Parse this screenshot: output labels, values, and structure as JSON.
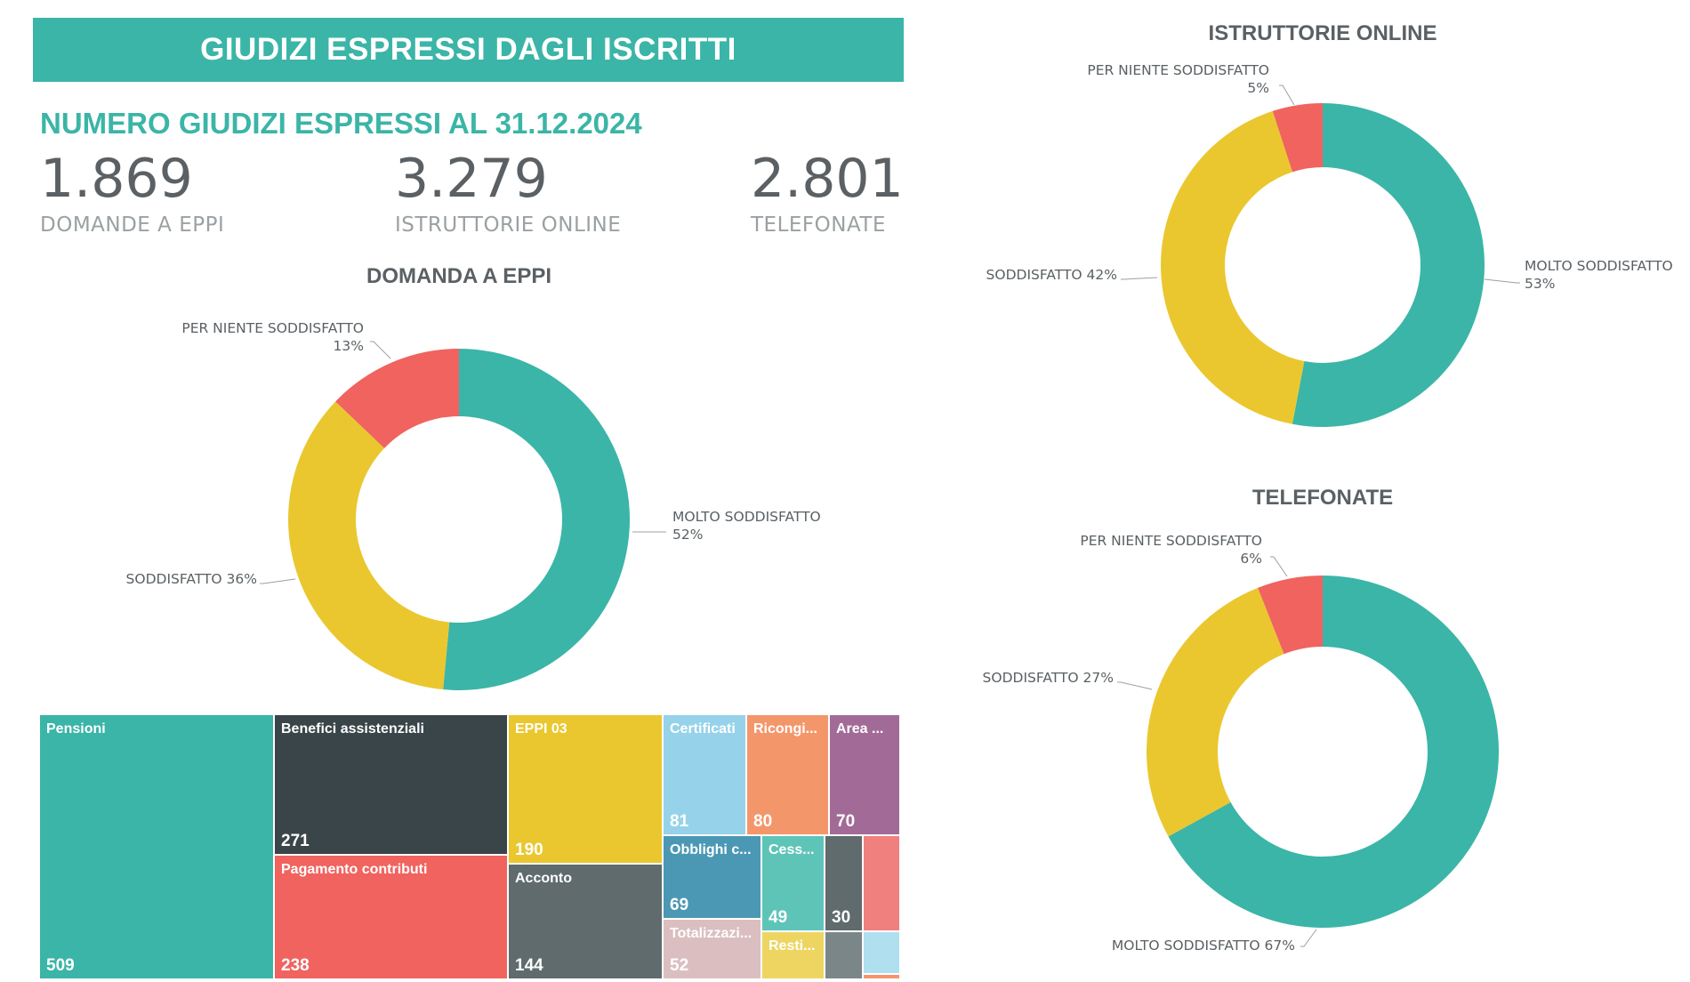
{
  "banner_title": "GIUDIZI ESPRESSI DAGLI ISCRITTI",
  "subheading": "NUMERO GIUDIZI ESPRESSI AL 31.12.2024",
  "kpis": [
    {
      "value": "1.869",
      "label": "DOMANDE A EPPI"
    },
    {
      "value": "3.279",
      "label": "ISTRUTTORIE ONLINE"
    },
    {
      "value": "2.801",
      "label": "TELEFONATE"
    }
  ],
  "colors": {
    "molto": "#3bb5a7",
    "soddisfatto": "#eac72f",
    "per_niente": "#f0635f",
    "accent": "#3bb5a7"
  },
  "chart_data": [
    {
      "type": "pie",
      "title": "DOMANDA A EPPI",
      "slices": [
        {
          "label": "MOLTO SODDISFATTO",
          "value": 52,
          "display": "52%"
        },
        {
          "label": "SODDISFATTO",
          "value": 36,
          "display": "36%"
        },
        {
          "label": "PER NIENTE SODDISFATTO",
          "value": 13,
          "display": "13%"
        }
      ]
    },
    {
      "type": "pie",
      "title": "ISTRUTTORIE ONLINE",
      "slices": [
        {
          "label": "MOLTO SODDISFATTO",
          "value": 53,
          "display": "53%"
        },
        {
          "label": "SODDISFATTO",
          "value": 42,
          "display": "42%"
        },
        {
          "label": "PER NIENTE SODDISFATTO",
          "value": 5,
          "display": "5%"
        }
      ]
    },
    {
      "type": "pie",
      "title": "TELEFONATE",
      "slices": [
        {
          "label": "MOLTO SODDISFATTO",
          "value": 67,
          "display": "67%"
        },
        {
          "label": "SODDISFATTO",
          "value": 27,
          "display": "27%"
        },
        {
          "label": "PER NIENTE SODDISFATTO",
          "value": 6,
          "display": "6%"
        }
      ]
    },
    {
      "type": "treemap",
      "items": [
        {
          "label": "Pensioni",
          "value": 509
        },
        {
          "label": "Benefici assistenziali",
          "value": 271
        },
        {
          "label": "Pagamento contributi",
          "value": 238
        },
        {
          "label": "EPPI 03",
          "value": 190
        },
        {
          "label": "Acconto",
          "value": 144
        },
        {
          "label": "Certificati",
          "value": 81
        },
        {
          "label": "Ricongi...",
          "value": 80
        },
        {
          "label": "Area ...",
          "value": 70
        },
        {
          "label": "Obblighi c...",
          "value": 69
        },
        {
          "label": "Cess...",
          "value": 49
        },
        {
          "label": "Totalizzazi...",
          "value": 52
        },
        {
          "label": "Resti...",
          "value": null
        },
        {
          "label": "",
          "value": 30
        }
      ]
    }
  ]
}
